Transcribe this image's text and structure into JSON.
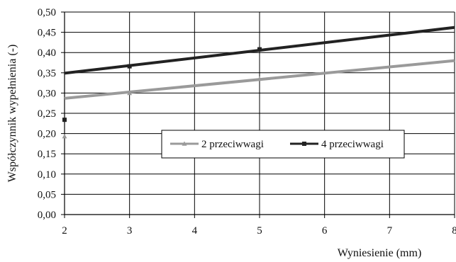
{
  "chart_data": {
    "type": "scatter",
    "xlabel": "Wyniesienie (mm)",
    "ylabel": "Współczynnik wypełnienia (-)",
    "xlim": [
      2,
      8
    ],
    "ylim": [
      0,
      0.5
    ],
    "x_ticks": [
      2,
      3,
      4,
      5,
      6,
      7,
      8
    ],
    "y_ticks": [
      "0,00",
      "0,05",
      "0,10",
      "0,15",
      "0,20",
      "0,25",
      "0,30",
      "0,35",
      "0,40",
      "0,45",
      "0,50"
    ],
    "grid": true,
    "legend_position": "center-right",
    "series": [
      {
        "name": "2 przeciwwagi",
        "color": "#9a9a9a",
        "marker": "triangle",
        "points": [
          {
            "x": 2,
            "y": 0.193
          },
          {
            "x": 3,
            "y": 0.3
          },
          {
            "x": 5,
            "y": 0.335
          }
        ],
        "trend": {
          "x": [
            2,
            8
          ],
          "y": [
            0.287,
            0.38
          ]
        }
      },
      {
        "name": "4 przeciwwagi",
        "color": "#222222",
        "marker": "square",
        "points": [
          {
            "x": 2,
            "y": 0.234
          },
          {
            "x": 3,
            "y": 0.366
          },
          {
            "x": 5,
            "y": 0.408
          }
        ],
        "trend": {
          "x": [
            2,
            8
          ],
          "y": [
            0.349,
            0.462
          ]
        }
      }
    ]
  }
}
